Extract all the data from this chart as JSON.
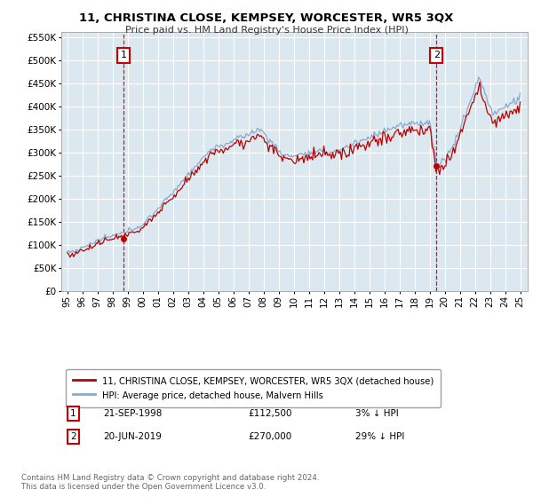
{
  "title": "11, CHRISTINA CLOSE, KEMPSEY, WORCESTER, WR5 3QX",
  "subtitle": "Price paid vs. HM Land Registry's House Price Index (HPI)",
  "ylim_max": 560000,
  "yticks": [
    0,
    50000,
    100000,
    150000,
    200000,
    250000,
    300000,
    350000,
    400000,
    450000,
    500000,
    550000
  ],
  "ytick_labels": [
    "£0",
    "£50K",
    "£100K",
    "£150K",
    "£200K",
    "£250K",
    "£300K",
    "£350K",
    "£400K",
    "£450K",
    "£500K",
    "£550K"
  ],
  "xlim_min": 1994.6,
  "xlim_max": 2025.5,
  "xtick_years": [
    1995,
    1996,
    1997,
    1998,
    1999,
    2000,
    2001,
    2002,
    2003,
    2004,
    2005,
    2006,
    2007,
    2008,
    2009,
    2010,
    2011,
    2012,
    2013,
    2014,
    2015,
    2016,
    2017,
    2018,
    2019,
    2020,
    2021,
    2022,
    2023,
    2024,
    2025
  ],
  "sale1_year": 1998.72,
  "sale1_price": 112500,
  "sale1_date_str": "21-SEP-1998",
  "sale1_pct_str": "3% ↓ HPI",
  "sale2_year": 2019.46,
  "sale2_price": 270000,
  "sale2_date_str": "20-JUN-2019",
  "sale2_pct_str": "29% ↓ HPI",
  "legend_label_price": "11, CHRISTINA CLOSE, KEMPSEY, WORCESTER, WR5 3QX (detached house)",
  "legend_label_hpi": "HPI: Average price, detached house, Malvern Hills",
  "footer_line1": "Contains HM Land Registry data © Crown copyright and database right 2024.",
  "footer_line2": "This data is licensed under the Open Government Licence v3.0.",
  "color_price": "#bb0000",
  "color_hpi": "#88aacc",
  "color_vline": "#cc0000",
  "color_bg": "#ffffff",
  "color_plot_bg": "#dce8f0",
  "color_grid": "#ffffff"
}
